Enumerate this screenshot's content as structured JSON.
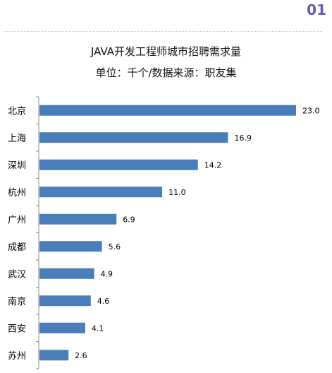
{
  "page_number": "01",
  "chart_data": {
    "type": "bar",
    "orientation": "horizontal",
    "title": "JAVA开发工程师城市招聘需求量",
    "subtitle": "单位：千个/数据来源：职友集",
    "categories": [
      "北京",
      "上海",
      "深圳",
      "杭州",
      "广州",
      "成都",
      "武汉",
      "南京",
      "西安",
      "苏州"
    ],
    "values": [
      23.0,
      16.9,
      14.2,
      11.0,
      6.9,
      5.6,
      4.9,
      4.6,
      4.1,
      2.6
    ],
    "value_labels": [
      "23.0",
      "16.9",
      "14.2",
      "11.0",
      "6.9",
      "5.6",
      "4.9",
      "4.6",
      "4.1",
      "2.6"
    ],
    "bar_color": "#4a7ebb",
    "xlim": [
      0,
      23.0
    ],
    "grid": false,
    "legend": "none"
  }
}
